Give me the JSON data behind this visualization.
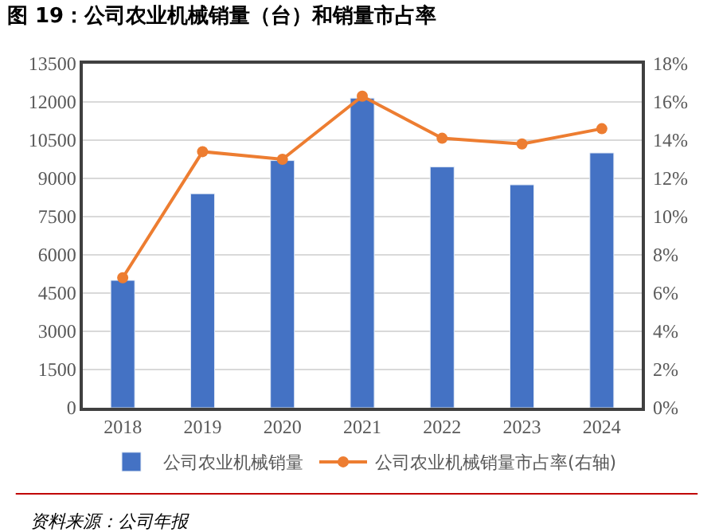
{
  "chart_data": {
    "type": "bar",
    "title": "图 19：公司农业机械销量（台）和销量市占率",
    "categories": [
      "2018",
      "2019",
      "2020",
      "2021",
      "2022",
      "2023",
      "2024"
    ],
    "series": [
      {
        "name": "公司农业机械销量",
        "color": "#4472c4",
        "values": [
          5000,
          8400,
          9700,
          12150,
          9450,
          8750,
          10000
        ]
      },
      {
        "name": "公司农业机械销量市占率(右轴)",
        "color": "#ed7d31",
        "type": "line",
        "axis": "y2",
        "marker": "circle",
        "values": [
          6.8,
          13.4,
          13.0,
          16.3,
          14.1,
          13.8,
          14.6
        ]
      }
    ],
    "ylim": [
      0,
      13500
    ],
    "yticks": [
      0,
      1500,
      3000,
      4500,
      6000,
      7500,
      9000,
      10500,
      12000,
      13500
    ],
    "y2lim": [
      0,
      18
    ],
    "y2ticks": [
      {
        "value": 0,
        "label": "0%"
      },
      {
        "value": 2,
        "label": "2%"
      },
      {
        "value": 4,
        "label": "4%"
      },
      {
        "value": 6,
        "label": "6%"
      },
      {
        "value": 8,
        "label": "8%"
      },
      {
        "value": 10,
        "label": "10%"
      },
      {
        "value": 12,
        "label": "12%"
      },
      {
        "value": 14,
        "label": "14%"
      },
      {
        "value": 16,
        "label": "16%"
      },
      {
        "value": 18,
        "label": "18%"
      }
    ],
    "grid": "y",
    "legend": "bottom",
    "annotations": [
      "资料来源：公司年报"
    ]
  }
}
